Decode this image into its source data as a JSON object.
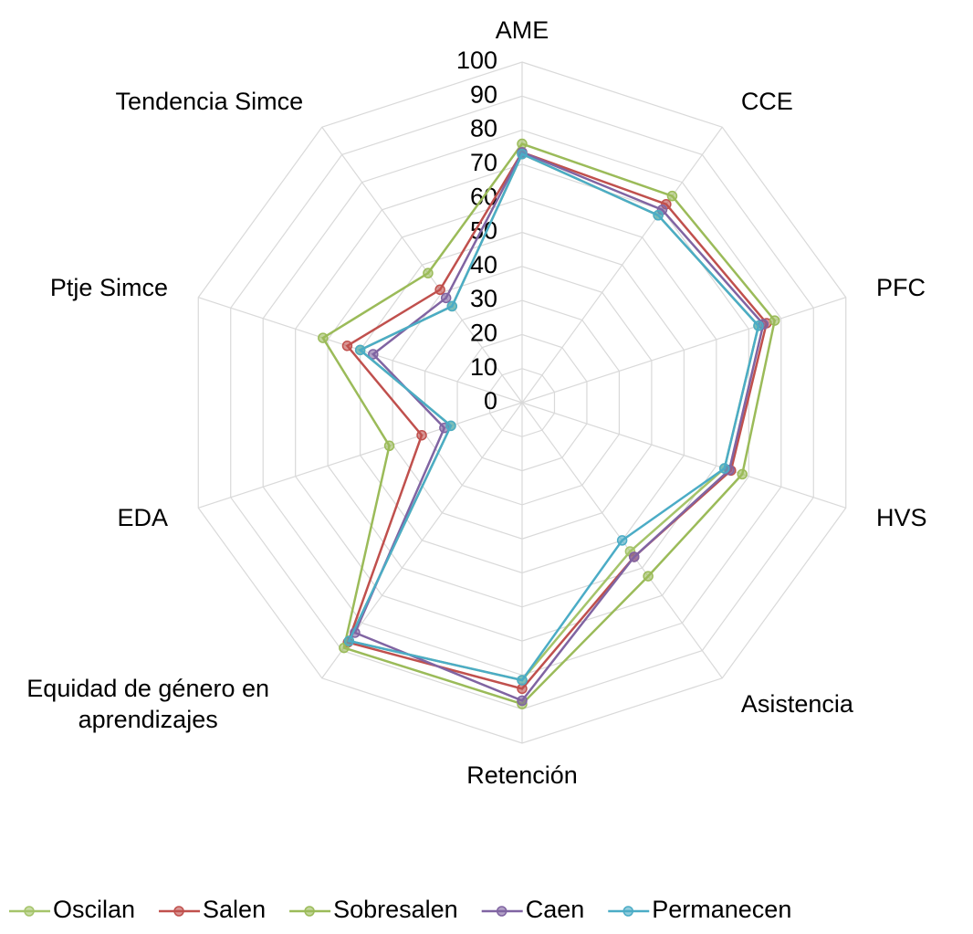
{
  "chart_data": {
    "type": "radar",
    "categories": [
      "AME",
      "CCE",
      "PFC",
      "HVS",
      "Asistencia",
      "Retención",
      "Equidad de género en aprendizajes",
      "EDA",
      "Ptje Simce",
      "Tendencia Simce"
    ],
    "series": [
      {
        "name": "Oscilan",
        "color": "#a5c46a",
        "values": [
          73,
          68,
          73,
          62.5,
          54,
          81.5,
          86.5,
          22,
          50,
          35
        ]
      },
      {
        "name": "Salen",
        "color": "#c0504d",
        "values": [
          73.5,
          72,
          75.5,
          64.5,
          56,
          84,
          87,
          31,
          54,
          41
        ]
      },
      {
        "name": "Sobresalen",
        "color": "#9bbb59",
        "values": [
          76,
          75,
          78,
          68,
          63,
          88.5,
          89,
          41,
          61.5,
          47
        ]
      },
      {
        "name": "Caen",
        "color": "#8064a2",
        "values": [
          73.5,
          70,
          74.5,
          64,
          56,
          87.5,
          83.5,
          24,
          46,
          38
        ]
      },
      {
        "name": "Permanecen",
        "color": "#4bacc6",
        "values": [
          73,
          68,
          73,
          62.5,
          50,
          81.5,
          86.5,
          22,
          50,
          35
        ]
      }
    ],
    "ylim": [
      0,
      100
    ],
    "yticks": [
      0,
      10,
      20,
      30,
      40,
      50,
      60,
      70,
      80,
      90,
      100
    ],
    "grid": true,
    "legend": "bottom"
  }
}
